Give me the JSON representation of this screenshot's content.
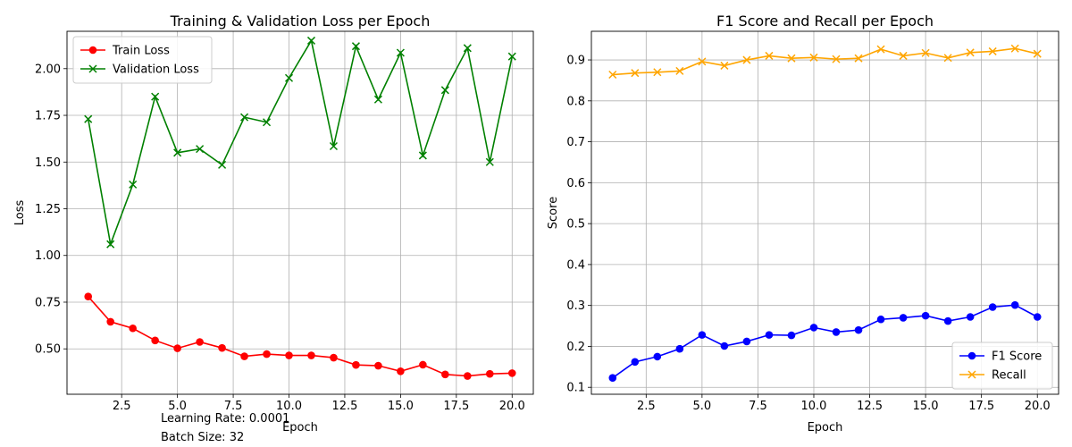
{
  "figure": {
    "notes": [
      "Learning Rate: 0.0001",
      "Batch Size: 32"
    ]
  },
  "chart_data": [
    {
      "type": "line",
      "title": "Training & Validation Loss per Epoch",
      "xlabel": "Epoch",
      "ylabel": "Loss",
      "x": [
        1,
        2,
        3,
        4,
        5,
        6,
        7,
        8,
        9,
        10,
        11,
        12,
        13,
        14,
        15,
        16,
        17,
        18,
        19,
        20
      ],
      "xlim": [
        0.05,
        20.95
      ],
      "ylim": [
        0.257,
        2.2
      ],
      "xticks": [
        2.5,
        5.0,
        7.5,
        10.0,
        12.5,
        15.0,
        17.5,
        20.0
      ],
      "xtick_labels": [
        "2.5",
        "5.0",
        "7.5",
        "10.0",
        "12.5",
        "15.0",
        "17.5",
        "20.0"
      ],
      "yticks": [
        0.5,
        0.75,
        1.0,
        1.25,
        1.5,
        1.75,
        2.0
      ],
      "ytick_labels": [
        "0.50",
        "0.75",
        "1.00",
        "1.25",
        "1.50",
        "1.75",
        "2.00"
      ],
      "grid": true,
      "legend_position": "upper-left",
      "series": [
        {
          "name": "Train Loss",
          "color": "#ff0000",
          "marker": "circle",
          "values": [
            0.78,
            0.645,
            0.61,
            0.545,
            0.503,
            0.537,
            0.505,
            0.46,
            0.472,
            0.465,
            0.465,
            0.453,
            0.414,
            0.41,
            0.38,
            0.415,
            0.363,
            0.355,
            0.366,
            0.37
          ]
        },
        {
          "name": "Validation Loss",
          "color": "#008000",
          "marker": "x",
          "values": [
            1.73,
            1.06,
            1.38,
            1.85,
            1.55,
            1.57,
            1.485,
            1.74,
            1.713,
            1.95,
            2.15,
            1.585,
            2.12,
            1.835,
            2.085,
            1.535,
            1.885,
            2.11,
            1.5,
            2.065
          ]
        }
      ]
    },
    {
      "type": "line",
      "title": "F1 Score and Recall per Epoch",
      "xlabel": "Epoch",
      "ylabel": "Score",
      "x": [
        1,
        2,
        3,
        4,
        5,
        6,
        7,
        8,
        9,
        10,
        11,
        12,
        13,
        14,
        15,
        16,
        17,
        18,
        19,
        20
      ],
      "xlim": [
        0.05,
        20.95
      ],
      "ylim": [
        0.083,
        0.97
      ],
      "xticks": [
        2.5,
        5.0,
        7.5,
        10.0,
        12.5,
        15.0,
        17.5,
        20.0
      ],
      "xtick_labels": [
        "2.5",
        "5.0",
        "7.5",
        "10.0",
        "12.5",
        "15.0",
        "17.5",
        "20.0"
      ],
      "yticks": [
        0.1,
        0.2,
        0.3,
        0.4,
        0.5,
        0.6,
        0.7,
        0.8,
        0.9
      ],
      "ytick_labels": [
        "0.1",
        "0.2",
        "0.3",
        "0.4",
        "0.5",
        "0.6",
        "0.7",
        "0.8",
        "0.9"
      ],
      "grid": true,
      "legend_position": "lower-right",
      "series": [
        {
          "name": "F1 Score",
          "color": "#0000ff",
          "marker": "circle",
          "values": [
            0.123,
            0.162,
            0.175,
            0.194,
            0.228,
            0.201,
            0.212,
            0.228,
            0.227,
            0.246,
            0.235,
            0.24,
            0.266,
            0.27,
            0.275,
            0.262,
            0.272,
            0.296,
            0.301,
            0.272
          ]
        },
        {
          "name": "Recall",
          "color": "#ffa500",
          "marker": "x",
          "values": [
            0.864,
            0.868,
            0.87,
            0.873,
            0.896,
            0.886,
            0.9,
            0.91,
            0.904,
            0.906,
            0.902,
            0.904,
            0.926,
            0.91,
            0.917,
            0.905,
            0.918,
            0.921,
            0.928,
            0.915
          ]
        }
      ]
    }
  ]
}
